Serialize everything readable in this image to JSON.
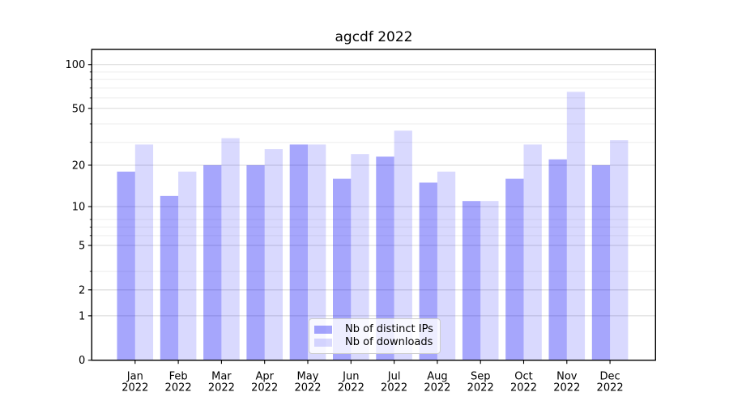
{
  "chart_data": {
    "type": "bar",
    "title": "agcdf 2022",
    "categories": [
      "Jan\n2022",
      "Feb\n2022",
      "Mar\n2022",
      "Apr\n2022",
      "May\n2022",
      "Jun\n2022",
      "Jul\n2022",
      "Aug\n2022",
      "Sep\n2022",
      "Oct\n2022",
      "Nov\n2022",
      "Dec\n2022"
    ],
    "series": [
      {
        "name": "Nb of distinct IPs",
        "color": "rgba(0,0,245,0.35)",
        "values": [
          18,
          12,
          20,
          20,
          28,
          16,
          23,
          15,
          11,
          16,
          22,
          20
        ]
      },
      {
        "name": "Nb of downloads",
        "color": "rgba(0,0,245,0.15)",
        "values": [
          28,
          18,
          31,
          26,
          28,
          24,
          35,
          18,
          11,
          28,
          65,
          30
        ]
      }
    ],
    "xlabel": "",
    "ylabel": "",
    "yscale": "log1p",
    "ylim": [
      0,
      127
    ],
    "ylim_1p_max": 128,
    "ytick_values": [
      0,
      1,
      2,
      5,
      10,
      20,
      50,
      100
    ],
    "ytick_labels": [
      "0",
      "1",
      "2",
      "5",
      "10",
      "20",
      "50",
      "100"
    ],
    "minor_grid_values_1p": [
      3,
      4,
      6,
      7,
      8,
      9,
      30,
      40,
      60,
      70,
      80,
      90
    ],
    "grid": "on",
    "legend_position": "lower center",
    "colors": {
      "spine": "#000000",
      "grid_major": "#d8d8d8",
      "grid_minor": "#eeeeee",
      "background": "#ffffff",
      "bar_distinct_ips": "rgba(0,0,245,0.35)",
      "bar_downloads": "rgba(0,0,245,0.15)"
    }
  }
}
